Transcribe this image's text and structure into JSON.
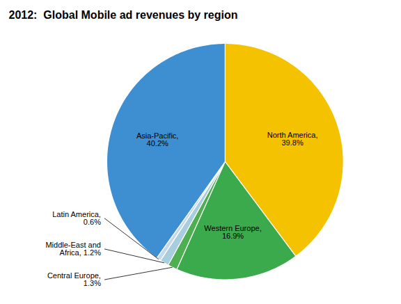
{
  "chart_data": {
    "type": "pie",
    "title": "2012:  Global Mobile ad revenues by region",
    "values": [
      39.8,
      16.9,
      1.3,
      1.2,
      0.6,
      40.2
    ],
    "value_labels": [
      "North America,\n39.8%",
      "Western Europe,\n16.9%",
      "Central Europe,\n1.3%",
      "Middle-East and\nAfrica, 1.2%",
      "Latin America,\n0.6%",
      "Asia-Pacific,\n40.2%"
    ],
    "colors": [
      "#F5C200",
      "#3BAA4C",
      "#4DAF50",
      "#A8CDDC",
      "#C5D8E8",
      "#3D8FD1"
    ],
    "data_labels": true
  }
}
